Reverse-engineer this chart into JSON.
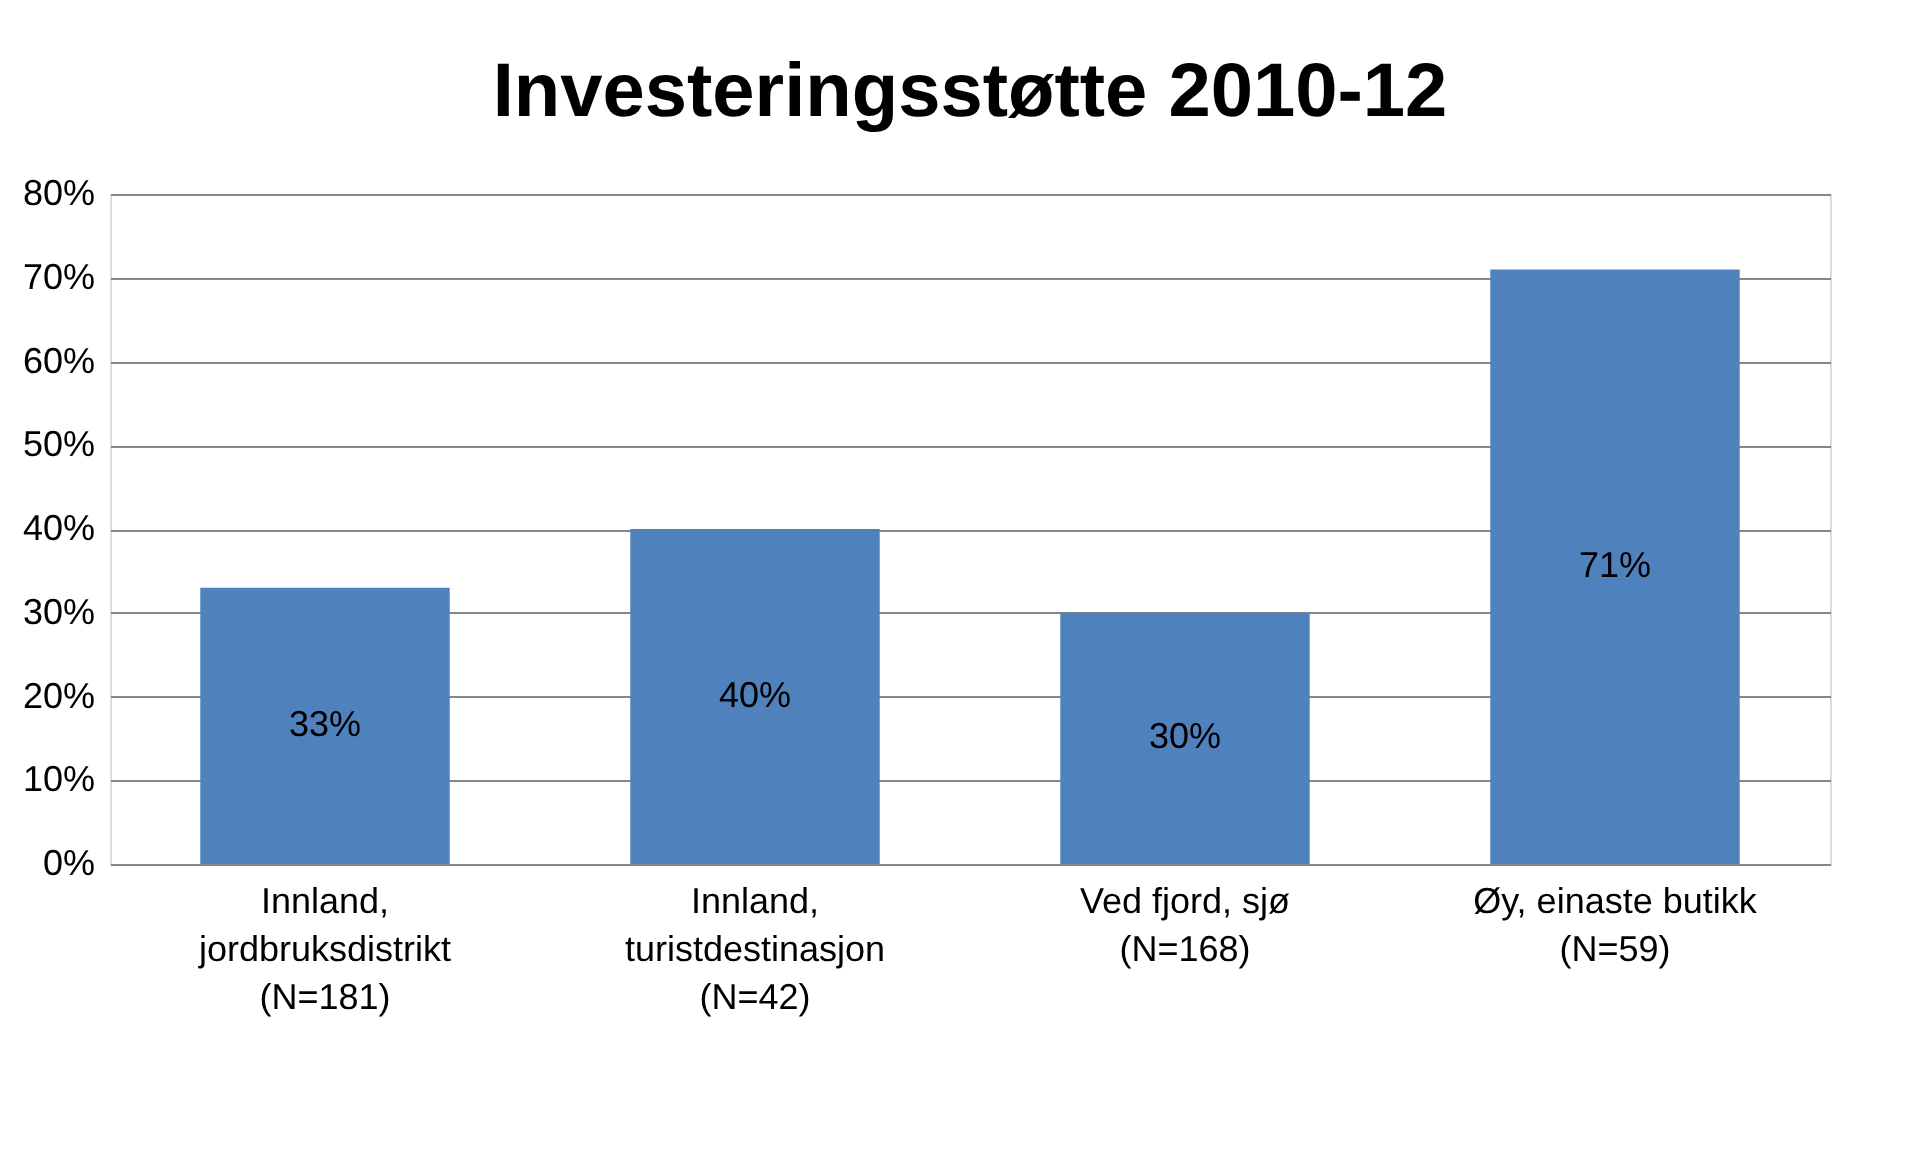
{
  "chart_data": {
    "type": "bar",
    "title": "Investeringsstøtte 2010-12",
    "categories": [
      "Innland,\njordbruksdistrikt\n(N=181)",
      "Innland,\nturistdestinasjon\n(N=42)",
      "Ved fjord, sjø\n(N=168)",
      "Øy, einaste butikk\n(N=59)"
    ],
    "values": [
      33,
      40,
      30,
      71
    ],
    "value_labels": [
      "33%",
      "40%",
      "30%",
      "71%"
    ],
    "color": "#4f81bd",
    "ylim": [
      0,
      80
    ],
    "yticks": [
      {
        "value": 0,
        "label": "0%"
      },
      {
        "value": 10,
        "label": "10%"
      },
      {
        "value": 20,
        "label": "20%"
      },
      {
        "value": 30,
        "label": "30%"
      },
      {
        "value": 40,
        "label": "40%"
      },
      {
        "value": 50,
        "label": "50%"
      },
      {
        "value": 60,
        "label": "60%"
      },
      {
        "value": 70,
        "label": "70%"
      },
      {
        "value": 80,
        "label": "80%"
      }
    ],
    "grid": "y"
  }
}
